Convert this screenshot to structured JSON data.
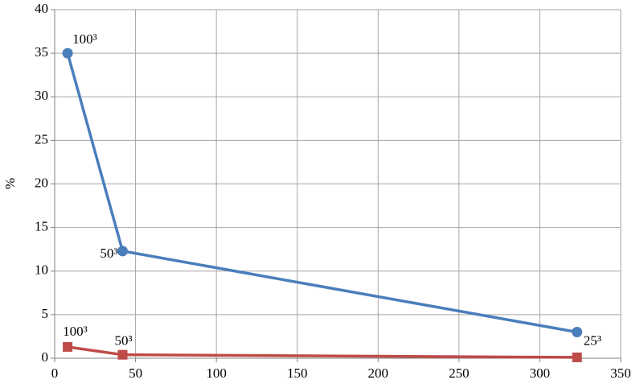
{
  "chart_data": {
    "type": "line",
    "y_label": "%",
    "xlim": [
      0,
      350
    ],
    "xticks": [
      0,
      50,
      100,
      150,
      200,
      250,
      300,
      350
    ],
    "ylim": [
      0,
      40
    ],
    "yticks": [
      0,
      5,
      10,
      15,
      20,
      25,
      30,
      35,
      40
    ],
    "grid": true,
    "series": [
      {
        "color": "#4a7ebb",
        "marker": "circle",
        "x": [
          8,
          42,
          323
        ],
        "values": [
          35,
          12.3,
          3
        ],
        "point_labels": [
          "100³",
          "50³",
          "25³"
        ]
      },
      {
        "color": "#be4b48",
        "marker": "square",
        "x": [
          8,
          42,
          323
        ],
        "values": [
          1.3,
          0.4,
          0.1
        ],
        "point_labels": [
          "100³",
          "50³",
          null
        ]
      }
    ]
  }
}
